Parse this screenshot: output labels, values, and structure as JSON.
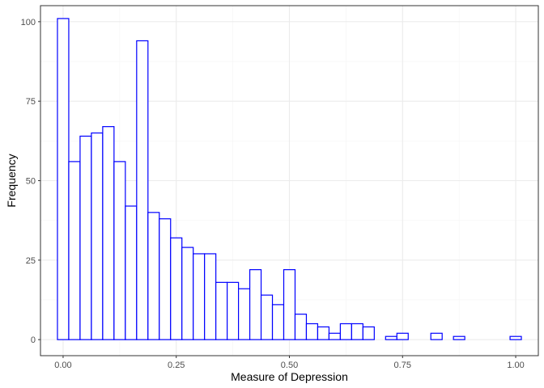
{
  "chart_data": {
    "type": "bar",
    "subtype": "histogram",
    "title": "",
    "xlabel": "Measure of Depression",
    "ylabel": "Frequency",
    "xlim": [
      -0.05,
      1.05
    ],
    "ylim": [
      -5.05,
      105.05
    ],
    "bin_width": 0.025,
    "bin_centers": [
      0.0,
      0.025,
      0.05,
      0.075,
      0.1,
      0.125,
      0.15,
      0.175,
      0.2,
      0.225,
      0.25,
      0.275,
      0.3,
      0.325,
      0.35,
      0.375,
      0.4,
      0.425,
      0.45,
      0.475,
      0.5,
      0.525,
      0.55,
      0.575,
      0.6,
      0.625,
      0.65,
      0.675,
      0.7,
      0.725,
      0.75,
      0.775,
      0.8,
      0.825,
      0.85,
      0.875,
      0.9,
      0.925,
      0.95,
      0.975,
      1.0
    ],
    "values": [
      101,
      56,
      64,
      65,
      67,
      56,
      42,
      94,
      40,
      38,
      32,
      29,
      27,
      27,
      18,
      18,
      16,
      22,
      14,
      11,
      22,
      8,
      5,
      4,
      2,
      5,
      5,
      4,
      0,
      1,
      2,
      0,
      0,
      2,
      0,
      1,
      0,
      0,
      0,
      0,
      1
    ],
    "x_ticks": [
      0,
      0.25,
      0.5,
      0.75,
      1
    ],
    "x_tick_labels": [
      "0.00",
      "0.25",
      "0.50",
      "0.75",
      "1.00"
    ],
    "y_ticks": [
      0,
      25,
      50,
      75,
      100
    ],
    "y_tick_labels": [
      "0",
      "25",
      "50",
      "75",
      "100"
    ],
    "grid": true,
    "legend": "none",
    "bar_outline_color": "#0000ff",
    "bar_fill_color": "#ffffff",
    "grid_major_color": "#ebebeb",
    "grid_minor_color": "#f5f5f5",
    "panel_border_color": "#333333"
  }
}
